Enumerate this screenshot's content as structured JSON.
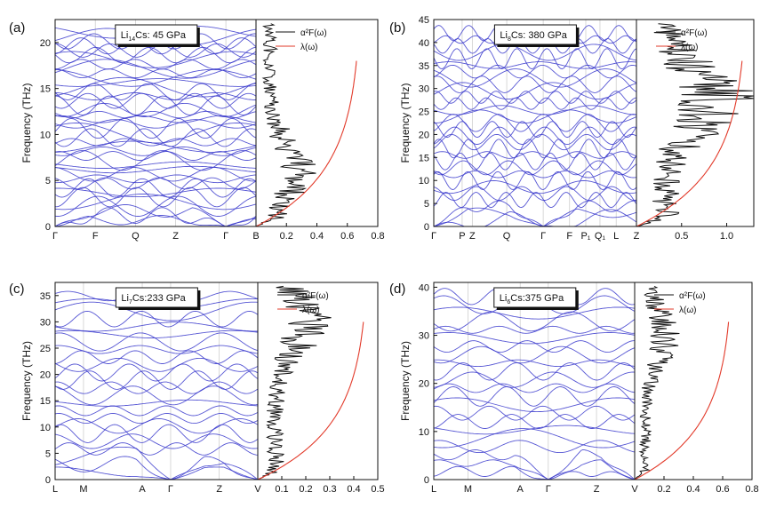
{
  "colors": {
    "bands": "#3a3acc",
    "alpha2F": "#111111",
    "lambda": "#e23a2a"
  },
  "chart_data": [
    {
      "id": "a",
      "type": "line",
      "panel_label": "(a)",
      "title_main": "Li",
      "title_sub": "14",
      "title_rest": "Cs: 45 GPa",
      "ylabel": "Frequency (THz)",
      "ylim": [
        0,
        22.5
      ],
      "yticks": [
        "0",
        "5",
        "10",
        "15",
        "20"
      ],
      "ytick_values": [
        0,
        5,
        10,
        15,
        20
      ],
      "kpath": [
        {
          "label": "Γ",
          "pos": 0.0
        },
        {
          "label": "F",
          "pos": 0.2
        },
        {
          "label": "Q",
          "pos": 0.4
        },
        {
          "label": "Z",
          "pos": 0.6
        },
        {
          "label": "Γ",
          "pos": 0.85
        },
        {
          "label": "B",
          "pos": 1.0
        }
      ],
      "n_bands": 42,
      "band_seed": 3,
      "xlim_right": [
        0,
        0.8
      ],
      "xticks_right": [
        "0.2",
        "0.4",
        "0.6",
        "0.8"
      ],
      "xtick_values_right": [
        0.2,
        0.4,
        0.6,
        0.8
      ],
      "legend": [
        "α²F(ω)",
        "λ(ω)"
      ],
      "alpha2F_peak_freq": 6,
      "alpha2F_peak": 0.38,
      "lambda_max": 0.66,
      "lambda_onset": 0.5
    },
    {
      "id": "b",
      "type": "line",
      "panel_label": "(b)",
      "title_main": "Li",
      "title_sub": "8",
      "title_rest": "Cs: 380 GPa",
      "ylabel": "Frequency (THz)",
      "ylim": [
        0,
        45
      ],
      "yticks": [
        "0",
        "5",
        "10",
        "15",
        "20",
        "25",
        "30",
        "35",
        "40",
        "45"
      ],
      "ytick_values": [
        0,
        5,
        10,
        15,
        20,
        25,
        30,
        35,
        40,
        45
      ],
      "kpath": [
        {
          "label": "Γ",
          "pos": 0.0
        },
        {
          "label": "P",
          "pos": 0.14
        },
        {
          "label": "Z",
          "pos": 0.19
        },
        {
          "label": "Q",
          "pos": 0.36
        },
        {
          "label": "Γ",
          "pos": 0.54
        },
        {
          "label": "F",
          "pos": 0.67
        },
        {
          "label": "P₁",
          "pos": 0.75
        },
        {
          "label": "Q₁",
          "pos": 0.82
        },
        {
          "label": "L",
          "pos": 0.9
        },
        {
          "label": "Z",
          "pos": 1.0
        }
      ],
      "n_bands": 30,
      "band_seed": 11,
      "xlim_right": [
        0,
        1.3
      ],
      "xticks_right": [
        "0.5",
        "1.0"
      ],
      "xtick_values_right": [
        0.5,
        1.0
      ],
      "legend": [
        "α²F(ω)",
        "λ(ω)"
      ],
      "alpha2F_peak_freq": 27.5,
      "alpha2F_peak": 1.3,
      "lambda_max": 1.17,
      "lambda_onset": 0.5
    },
    {
      "id": "c",
      "type": "line",
      "panel_label": "(c)",
      "title_main": "Li",
      "title_sub": "7",
      "title_rest": "Cs:233 GPa",
      "ylabel": "Frequency (THz)",
      "ylim": [
        0,
        37.5
      ],
      "yticks": [
        "0",
        "5",
        "10",
        "15",
        "20",
        "25",
        "30",
        "35"
      ],
      "ytick_values": [
        0,
        5,
        10,
        15,
        20,
        25,
        30,
        35
      ],
      "kpath": [
        {
          "label": "L",
          "pos": 0.0
        },
        {
          "label": "M",
          "pos": 0.14
        },
        {
          "label": "A",
          "pos": 0.43
        },
        {
          "label": "Γ",
          "pos": 0.57
        },
        {
          "label": "Z",
          "pos": 0.81
        },
        {
          "label": "V",
          "pos": 1.0
        }
      ],
      "n_bands": 24,
      "band_seed": 21,
      "xlim_right": [
        0,
        0.5
      ],
      "xticks_right": [
        "0.1",
        "0.2",
        "0.3",
        "0.4",
        "0.5"
      ],
      "xtick_values_right": [
        0.1,
        0.2,
        0.3,
        0.4,
        0.5
      ],
      "legend": [
        "α²F(ω)",
        "λ(ω)"
      ],
      "alpha2F_peak_freq": 30,
      "alpha2F_peak": 0.3,
      "lambda_max": 0.44,
      "lambda_onset": 0.5
    },
    {
      "id": "d",
      "type": "line",
      "panel_label": "(d)",
      "title_main": "Li",
      "title_sub": "6",
      "title_rest": "Cs:375 GPa",
      "ylabel": "Frequency (THz)",
      "ylim": [
        0,
        41
      ],
      "yticks": [
        "0",
        "10",
        "20",
        "30",
        "40"
      ],
      "ytick_values": [
        0,
        10,
        20,
        30,
        40
      ],
      "kpath": [
        {
          "label": "L",
          "pos": 0.0
        },
        {
          "label": "M",
          "pos": 0.17
        },
        {
          "label": "A",
          "pos": 0.43
        },
        {
          "label": "Γ",
          "pos": 0.57
        },
        {
          "label": "Z",
          "pos": 0.81
        },
        {
          "label": "V",
          "pos": 1.0
        }
      ],
      "n_bands": 22,
      "band_seed": 33,
      "xlim_right": [
        0,
        0.8
      ],
      "xticks_right": [
        "0.2",
        "0.4",
        "0.6",
        "0.8"
      ],
      "xtick_values_right": [
        0.2,
        0.4,
        0.6,
        0.8
      ],
      "legend": [
        "α²F(ω)",
        "λ(ω)"
      ],
      "alpha2F_peak_freq": 30,
      "alpha2F_peak": 0.3,
      "lambda_max": 0.64,
      "lambda_onset": 0.5
    }
  ]
}
